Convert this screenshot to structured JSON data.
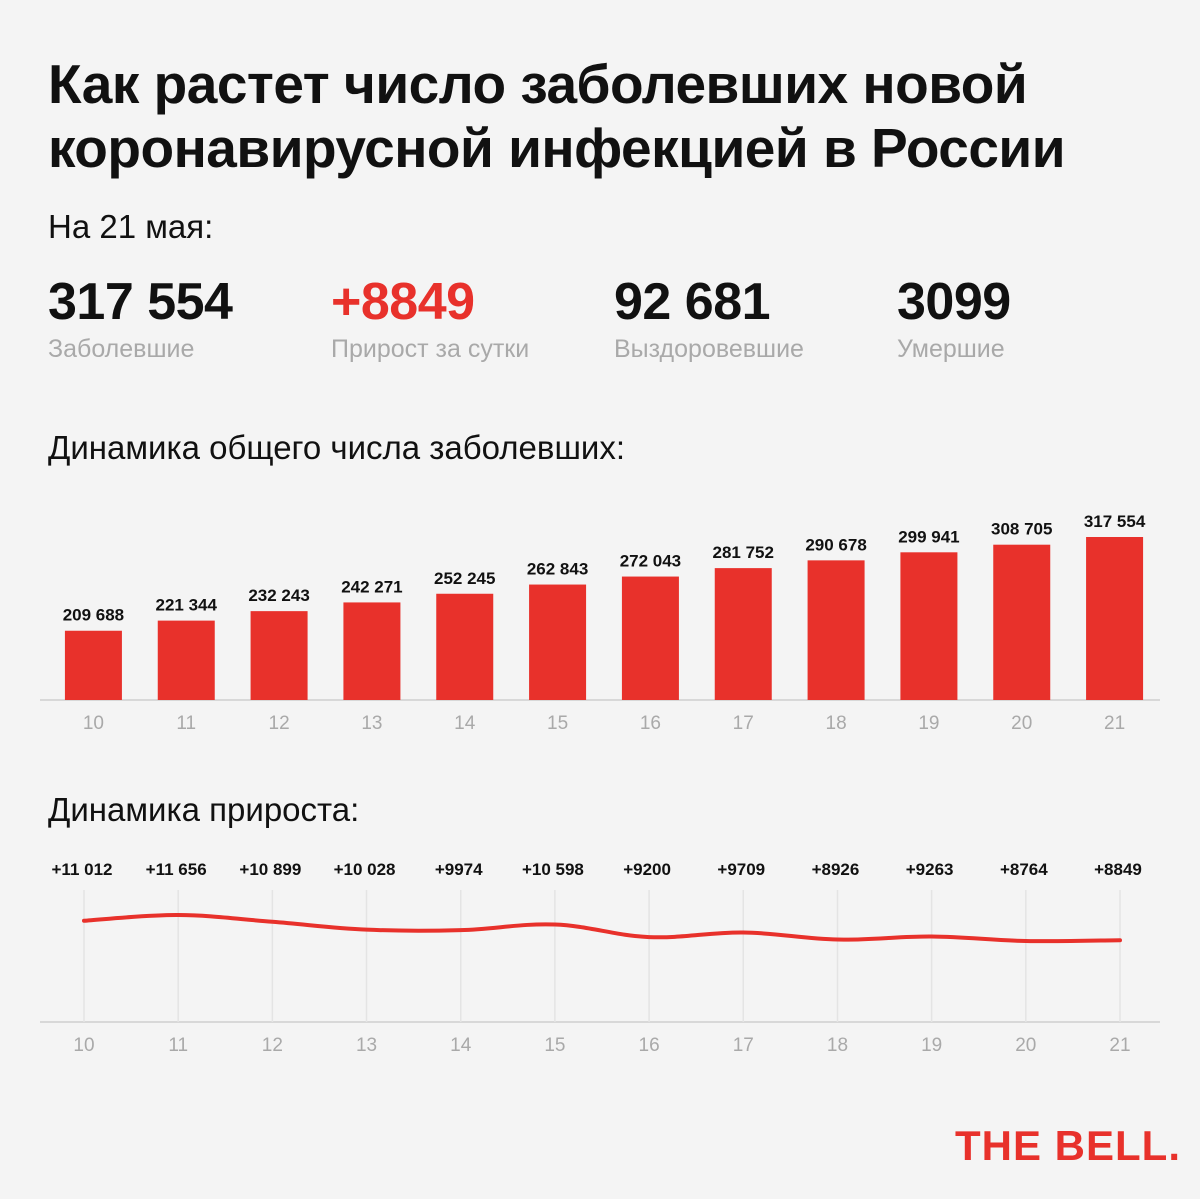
{
  "title": {
    "line1": "Как растет число заболевших новой",
    "line2": "коронавирусной инфекцией в России"
  },
  "date_label": "На 21 мая:",
  "stats": [
    {
      "value": "317 554",
      "label": "Заболевшие"
    },
    {
      "value": "+8849",
      "label": "Прирост за сутки"
    },
    {
      "value": "92 681",
      "label": "Выздоровевшие"
    },
    {
      "value": "3099",
      "label": "Умершие"
    }
  ],
  "colors": {
    "accent": "#e8312b",
    "text": "#111111",
    "muted": "#a9a9a9",
    "background": "#f4f4f4",
    "axis": "#cfcfcf",
    "grid": "#e4e4e4"
  },
  "logo": "THE BELL.",
  "chart_data": [
    {
      "type": "bar",
      "title": "Динамика общего числа заболевших:",
      "categories": [
        "10",
        "11",
        "12",
        "13",
        "14",
        "15",
        "16",
        "17",
        "18",
        "19",
        "20",
        "21"
      ],
      "values": [
        209688,
        221344,
        232243,
        242271,
        252245,
        262843,
        272043,
        281752,
        290678,
        299941,
        308705,
        317554
      ],
      "value_labels": [
        "209 688",
        "221 344",
        "232 243",
        "242 271",
        "252 245",
        "262 843",
        "272 043",
        "281 752",
        "290 678",
        "299 941",
        "308 705",
        "317 554"
      ],
      "xlabel": "",
      "ylabel": "",
      "grid": false,
      "legend": "none"
    },
    {
      "type": "line",
      "title": "Динамика прироста:",
      "categories": [
        "10",
        "11",
        "12",
        "13",
        "14",
        "15",
        "16",
        "17",
        "18",
        "19",
        "20",
        "21"
      ],
      "values": [
        11012,
        11656,
        10899,
        10028,
        9974,
        10598,
        9200,
        9709,
        8926,
        9263,
        8764,
        8849
      ],
      "value_labels": [
        "+11 012",
        "+11 656",
        "+10 899",
        "+10 028",
        "+9974",
        "+10 598",
        "+9200",
        "+9709",
        "+8926",
        "+9263",
        "+8764",
        "+8849"
      ],
      "xlabel": "",
      "ylabel": "",
      "grid": true,
      "legend": "none"
    }
  ]
}
